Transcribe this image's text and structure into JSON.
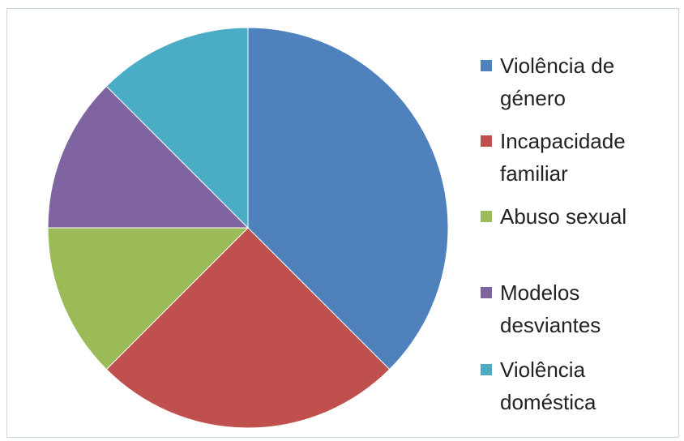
{
  "chart_data": {
    "type": "pie",
    "categories": [
      "Violência de género",
      "Incapacidade familiar",
      "Abuso sexual",
      "Modelos desviantes",
      "Violência doméstica"
    ],
    "values": [
      37.5,
      25,
      12.5,
      12.5,
      12.5
    ],
    "colors": [
      "#4f81bd",
      "#c0504d",
      "#9bbb59",
      "#8064a2",
      "#4bacc6"
    ],
    "start_angle": "12 o'clock",
    "direction": "clockwise",
    "legend_position": "right",
    "title": ""
  },
  "legend": {
    "items": [
      {
        "line1": "Violência de",
        "line2": "género"
      },
      {
        "line1": "Incapacidade",
        "line2": "familiar"
      },
      {
        "line1": "Abuso sexual",
        "line2": ""
      },
      {
        "line1": "Modelos",
        "line2": "desviantes"
      },
      {
        "line1": "Violência",
        "line2": "doméstica"
      }
    ]
  }
}
